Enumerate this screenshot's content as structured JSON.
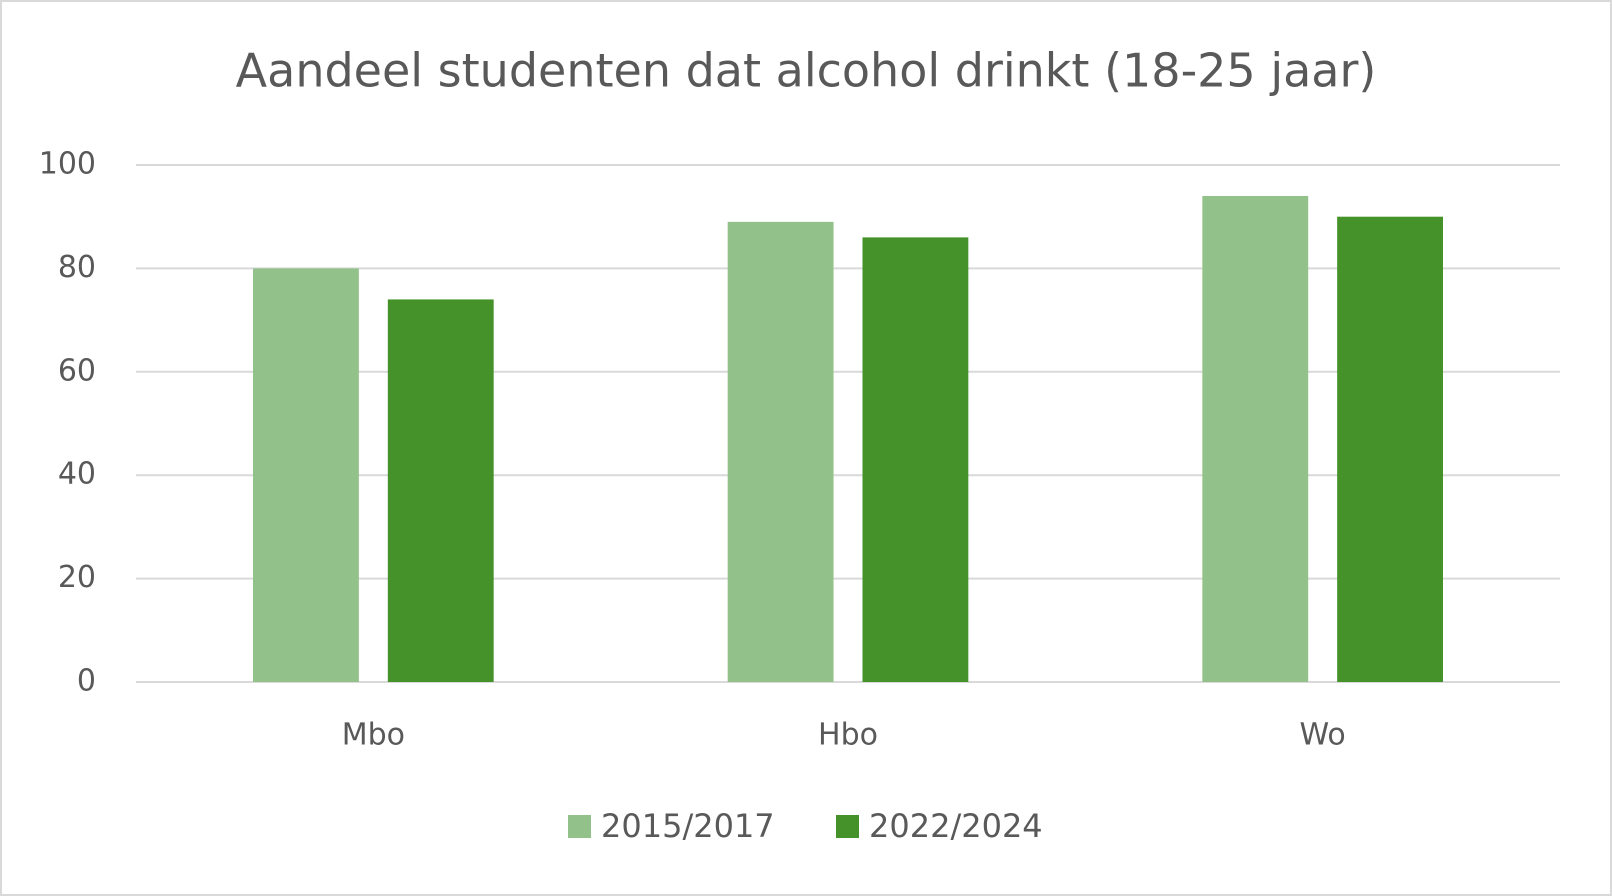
{
  "chart_data": {
    "type": "bar",
    "title": "Aandeel studenten dat alcohol drinkt (18-25 jaar)",
    "categories": [
      "Mbo",
      "Hbo",
      "Wo"
    ],
    "series": [
      {
        "name": "2015/2017",
        "color": "#93c18a",
        "values": [
          80,
          89,
          94
        ]
      },
      {
        "name": "2022/2024",
        "color": "#45922a",
        "values": [
          74,
          86,
          90
        ]
      }
    ],
    "ylim": [
      0,
      100
    ],
    "yticks": [
      0,
      20,
      40,
      60,
      80,
      100
    ],
    "grid": true,
    "legend": "bottom"
  }
}
